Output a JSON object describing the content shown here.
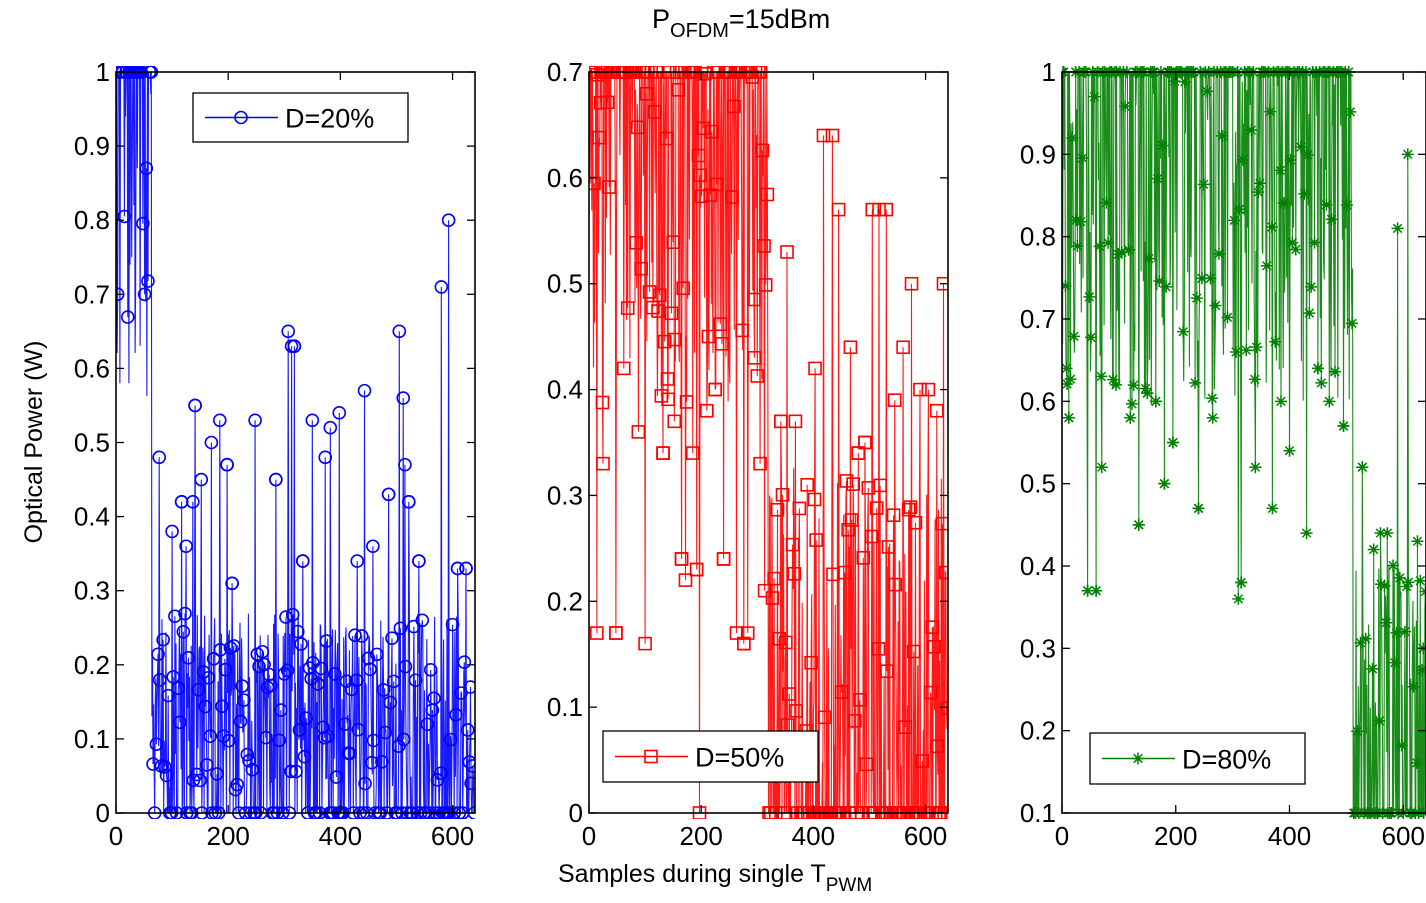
{
  "figure": {
    "title_main": "P",
    "title_sub": "OFDM",
    "title_rest": "=15dBm",
    "ylabel": "Optical Power (W)",
    "xlabel_main": "Samples during single T",
    "xlabel_sub": "PWM"
  },
  "chart_data": [
    {
      "type": "line",
      "marker": "circle",
      "series": [
        {
          "name": "D=20%",
          "color": "#0000ff"
        }
      ],
      "legend_position": "top",
      "xlim": [
        0,
        640
      ],
      "ylim": [
        0,
        1
      ],
      "xticks": [
        0,
        200,
        400,
        600
      ],
      "yticks": [
        0,
        0.1,
        0.2,
        0.3,
        0.4,
        0.5,
        0.6,
        0.7,
        0.8,
        0.9,
        1
      ],
      "ytick_labels": [
        "0",
        "0.1",
        "0.2",
        "0.3",
        "0.4",
        "0.5",
        "0.6",
        "0.7",
        "0.8",
        "0.9",
        "1"
      ],
      "high_region_end": 64,
      "high_values": [
        0.82,
        0.94,
        0.64,
        0.7,
        1,
        0.69,
        0.87,
        0.58,
        0.92,
        0.74,
        1,
        0.65,
        0.75,
        0.89,
        1,
        0.83
      ],
      "peaks": [
        [
          77,
          0.48
        ],
        [
          100,
          0.38
        ],
        [
          117,
          0.42
        ],
        [
          125,
          0.36
        ],
        [
          137,
          0.42
        ],
        [
          141,
          0.55
        ],
        [
          152,
          0.45
        ],
        [
          170,
          0.5
        ],
        [
          185,
          0.53
        ],
        [
          198,
          0.47
        ],
        [
          207,
          0.31
        ],
        [
          248,
          0.53
        ],
        [
          285,
          0.45
        ],
        [
          307,
          0.65
        ],
        [
          313,
          0.63
        ],
        [
          318,
          0.63
        ],
        [
          333,
          0.34
        ],
        [
          350,
          0.53
        ],
        [
          373,
          0.48
        ],
        [
          382,
          0.52
        ],
        [
          398,
          0.54
        ],
        [
          430,
          0.34
        ],
        [
          443,
          0.57
        ],
        [
          458,
          0.36
        ],
        [
          486,
          0.43
        ],
        [
          505,
          0.65
        ],
        [
          512,
          0.56
        ],
        [
          515,
          0.47
        ],
        [
          522,
          0.42
        ],
        [
          540,
          0.34
        ],
        [
          580,
          0.71
        ],
        [
          593,
          0.8
        ],
        [
          609,
          0.33
        ],
        [
          624,
          0.33
        ],
        [
          632,
          0.17
        ]
      ]
    },
    {
      "type": "line",
      "marker": "square",
      "series": [
        {
          "name": "D=50%",
          "color": "#ff0000"
        }
      ],
      "legend_position": "bottom-left",
      "xlim": [
        0,
        640
      ],
      "ylim": [
        0,
        0.7
      ],
      "xticks": [
        0,
        200,
        400,
        600
      ],
      "yticks": [
        0,
        0.1,
        0.2,
        0.3,
        0.4,
        0.5,
        0.6,
        0.7
      ],
      "ytick_labels": [
        "0",
        "0.1",
        "0.2",
        "0.3",
        "0.4",
        "0.5",
        "0.6",
        "0.7"
      ],
      "high_region_end": 320,
      "drops": [
        [
          14,
          0.17
        ],
        [
          25,
          0.33
        ],
        [
          48,
          0.17
        ],
        [
          62,
          0.42
        ],
        [
          88,
          0.36
        ],
        [
          100,
          0.16
        ],
        [
          132,
          0.34
        ],
        [
          140,
          0.41
        ],
        [
          152,
          0.37
        ],
        [
          165,
          0.24
        ],
        [
          172,
          0.22
        ],
        [
          185,
          0.34
        ],
        [
          192,
          0.23
        ],
        [
          197,
          0.0
        ],
        [
          210,
          0.38
        ],
        [
          225,
          0.4
        ],
        [
          240,
          0.24
        ],
        [
          263,
          0.17
        ],
        [
          276,
          0.16
        ],
        [
          283,
          0.17
        ],
        [
          295,
          0.43
        ],
        [
          305,
          0.33
        ],
        [
          313,
          0.21
        ]
      ],
      "peaks": [
        [
          342,
          0.37
        ],
        [
          353,
          0.53
        ],
        [
          368,
          0.37
        ],
        [
          389,
          0.31
        ],
        [
          403,
          0.42
        ],
        [
          418,
          0.64
        ],
        [
          434,
          0.64
        ],
        [
          445,
          0.57
        ],
        [
          466,
          0.44
        ],
        [
          480,
          0.34
        ],
        [
          492,
          0.35
        ],
        [
          505,
          0.57
        ],
        [
          517,
          0.57
        ],
        [
          530,
          0.57
        ],
        [
          545,
          0.39
        ],
        [
          560,
          0.44
        ],
        [
          575,
          0.5
        ],
        [
          590,
          0.4
        ],
        [
          605,
          0.4
        ],
        [
          620,
          0.38
        ],
        [
          632,
          0.5
        ]
      ]
    },
    {
      "type": "line",
      "marker": "star",
      "series": [
        {
          "name": "D=80%",
          "color": "#008000"
        }
      ],
      "legend_position": "bottom-left",
      "xlim": [
        0,
        640
      ],
      "ylim": [
        0.1,
        1
      ],
      "xticks": [
        0,
        200,
        400,
        600
      ],
      "yticks": [
        0.1,
        0.2,
        0.3,
        0.4,
        0.5,
        0.6,
        0.7,
        0.8,
        0.9,
        1
      ],
      "ytick_labels": [
        "0.1",
        "0.2",
        "0.3",
        "0.4",
        "0.5",
        "0.6",
        "0.7",
        "0.8",
        "0.9",
        "1"
      ],
      "high_region_end": 512,
      "drops": [
        [
          8,
          0.64
        ],
        [
          12,
          0.58
        ],
        [
          25,
          0.82
        ],
        [
          45,
          0.37
        ],
        [
          60,
          0.37
        ],
        [
          70,
          0.52
        ],
        [
          95,
          0.62
        ],
        [
          120,
          0.58
        ],
        [
          135,
          0.45
        ],
        [
          150,
          0.61
        ],
        [
          165,
          0.6
        ],
        [
          180,
          0.5
        ],
        [
          195,
          0.55
        ],
        [
          240,
          0.47
        ],
        [
          265,
          0.58
        ],
        [
          310,
          0.36
        ],
        [
          315,
          0.38
        ],
        [
          340,
          0.52
        ],
        [
          370,
          0.47
        ],
        [
          385,
          0.6
        ],
        [
          400,
          0.54
        ],
        [
          430,
          0.44
        ],
        [
          450,
          0.64
        ],
        [
          470,
          0.6
        ],
        [
          495,
          0.57
        ]
      ],
      "peaks": [
        [
          528,
          0.52
        ],
        [
          548,
          0.42
        ],
        [
          560,
          0.44
        ],
        [
          572,
          0.44
        ],
        [
          590,
          0.81
        ],
        [
          608,
          0.9
        ],
        [
          625,
          0.43
        ],
        [
          635,
          0.3
        ]
      ]
    }
  ]
}
